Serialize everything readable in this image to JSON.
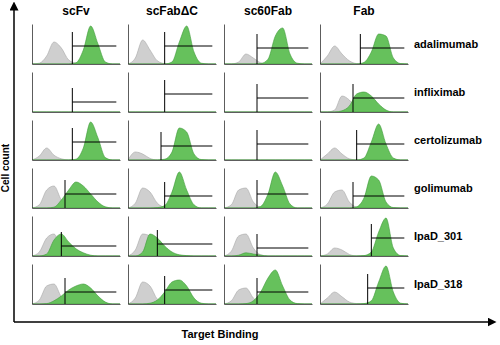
{
  "chart_data": {
    "type": "histogram",
    "x_label": "Target Binding",
    "y_label": "Cell count",
    "columns": [
      "scFv",
      "scFabΔC",
      "sc60Fab",
      "Fab"
    ],
    "rows": [
      "adalimumab",
      "infliximab",
      "certolizumab",
      "golimumab",
      "IpaD_301",
      "IpaD_318"
    ],
    "colors": [
      "#cfcfcf",
      "#66c15c"
    ],
    "x": [
      0,
      1,
      2,
      3,
      4,
      5,
      6,
      7,
      8,
      9,
      10,
      11,
      12
    ],
    "xlim": [
      0,
      12
    ],
    "ylim": [
      0,
      100
    ],
    "tick_labels": false,
    "panels": [
      [
        {
          "control": [
            0,
            2,
            20,
            55,
            40,
            10,
            2,
            0,
            0,
            0,
            0,
            0,
            0
          ],
          "sample": [
            0,
            0,
            0,
            0,
            0,
            0,
            3,
            35,
            95,
            50,
            5,
            0,
            0
          ],
          "gate": {
            "x": [
              5.5,
              11.5
            ],
            "y": 45
          }
        },
        {
          "control": [
            0,
            15,
            60,
            35,
            8,
            1,
            0,
            0,
            0,
            0,
            0,
            0,
            0
          ],
          "sample": [
            0,
            0,
            0,
            0,
            0,
            0,
            5,
            55,
            95,
            30,
            2,
            0,
            0
          ],
          "gate": {
            "x": [
              5,
              11.5
            ],
            "y": 45
          }
        },
        {
          "control": [
            0,
            0,
            5,
            25,
            15,
            3,
            0,
            0,
            0,
            0,
            0,
            0,
            0
          ],
          "sample": [
            0,
            0,
            0,
            0,
            0,
            1,
            12,
            70,
            90,
            25,
            2,
            0,
            0
          ],
          "gate": {
            "x": [
              4.5,
              11.5
            ],
            "y": 40
          }
        },
        {
          "control": [
            0,
            20,
            45,
            25,
            8,
            1,
            0,
            0,
            0,
            0,
            0,
            0,
            0
          ],
          "sample": [
            0,
            0,
            0,
            0,
            0,
            0,
            4,
            30,
            75,
            70,
            15,
            1,
            0
          ],
          "gate": {
            "x": [
              5.5,
              11.5
            ],
            "y": 40
          }
        }
      ],
      [
        {
          "control": [
            0,
            0,
            0,
            0,
            0,
            0,
            0,
            0,
            0,
            0,
            0,
            0,
            0
          ],
          "sample": [
            0,
            0,
            0,
            0,
            0,
            0,
            0,
            0,
            0,
            0,
            0,
            0,
            0
          ],
          "gate": {
            "x": [
              5.5,
              11.5
            ],
            "y": 25
          }
        },
        {
          "control": [
            0,
            0,
            0,
            0,
            0,
            0,
            0,
            0,
            0,
            0,
            0,
            0,
            0
          ],
          "sample": [
            0,
            0,
            0,
            0,
            0,
            0,
            0,
            0,
            0,
            0,
            0,
            0,
            0
          ],
          "gate": {
            "x": [
              5,
              11.5
            ],
            "y": 45
          }
        },
        {
          "control": [
            0,
            0,
            0,
            0,
            0,
            0,
            0,
            0,
            0,
            0,
            0,
            0,
            0
          ],
          "sample": [
            0,
            0,
            0,
            0,
            0,
            0,
            0,
            0,
            0,
            0,
            0,
            0,
            0
          ],
          "gate": {
            "x": [
              4.5,
              11.5
            ],
            "y": 35
          }
        },
        {
          "control": [
            0,
            0,
            5,
            40,
            30,
            8,
            1,
            0,
            0,
            0,
            0,
            0,
            0
          ],
          "sample": [
            0,
            0,
            0,
            3,
            15,
            45,
            50,
            40,
            20,
            5,
            0,
            0,
            0
          ],
          "gate": {
            "x": [
              4.5,
              11.5
            ],
            "y": 35
          }
        }
      ],
      [
        {
          "control": [
            0,
            10,
            30,
            12,
            3,
            0,
            0,
            0,
            0,
            0,
            0,
            0,
            0
          ],
          "sample": [
            0,
            0,
            0,
            0,
            0,
            0,
            2,
            30,
            95,
            55,
            6,
            0,
            0
          ],
          "gate": {
            "x": [
              5.5,
              11.5
            ],
            "y": 45
          }
        },
        {
          "control": [
            0,
            20,
            15,
            4,
            0,
            0,
            0,
            0,
            0,
            0,
            0,
            0,
            0
          ],
          "sample": [
            0,
            0,
            0,
            0,
            0,
            2,
            20,
            80,
            70,
            15,
            1,
            0,
            0
          ],
          "gate": {
            "x": [
              4.5,
              11.5
            ],
            "y": 35
          }
        },
        {
          "control": [
            0,
            0,
            0,
            0,
            0,
            0,
            0,
            0,
            0,
            0,
            0,
            0,
            0
          ],
          "sample": [
            0,
            0,
            0,
            0,
            0,
            0,
            0,
            0,
            0,
            0,
            0,
            0,
            0
          ],
          "gate": {
            "x": [
              4.5,
              11.5
            ],
            "y": 40
          }
        },
        {
          "control": [
            0,
            15,
            30,
            15,
            3,
            0,
            0,
            0,
            0,
            0,
            0,
            0,
            0
          ],
          "sample": [
            0,
            0,
            0,
            0,
            0,
            0,
            5,
            45,
            90,
            40,
            5,
            0,
            0
          ],
          "gate": {
            "x": [
              5,
              11.5
            ],
            "y": 40
          }
        }
      ],
      [
        {
          "control": [
            0,
            8,
            45,
            55,
            20,
            3,
            0,
            0,
            0,
            0,
            0,
            0,
            0
          ],
          "sample": [
            0,
            0,
            0,
            2,
            20,
            45,
            65,
            55,
            35,
            15,
            3,
            0,
            0
          ],
          "gate": {
            "x": [
              4.5,
              11.5
            ],
            "y": 35
          }
        },
        {
          "control": [
            0,
            12,
            50,
            40,
            12,
            2,
            0,
            0,
            0,
            0,
            0,
            0,
            0
          ],
          "sample": [
            0,
            0,
            0,
            0,
            1,
            6,
            40,
            90,
            45,
            8,
            0,
            0,
            0
          ],
          "gate": {
            "x": [
              5,
              11.5
            ],
            "y": 30
          }
        },
        {
          "control": [
            0,
            8,
            45,
            50,
            15,
            2,
            0,
            0,
            0,
            0,
            0,
            0,
            0
          ],
          "sample": [
            0,
            0,
            0,
            0,
            0,
            4,
            35,
            90,
            55,
            10,
            0,
            0,
            0
          ],
          "gate": {
            "x": [
              4.5,
              11.5
            ],
            "y": 35
          }
        },
        {
          "control": [
            0,
            10,
            40,
            45,
            15,
            2,
            0,
            0,
            0,
            0,
            0,
            0,
            0
          ],
          "sample": [
            0,
            0,
            0,
            0,
            0,
            3,
            25,
            80,
            70,
            15,
            1,
            0,
            0
          ],
          "gate": {
            "x": [
              4.5,
              11.5
            ],
            "y": 30
          }
        }
      ],
      [
        {
          "control": [
            0,
            10,
            45,
            55,
            20,
            3,
            0,
            0,
            0,
            0,
            0,
            0,
            0
          ],
          "sample": [
            0,
            0,
            5,
            40,
            55,
            35,
            18,
            8,
            2,
            0,
            0,
            0,
            0
          ],
          "gate": {
            "x": [
              4,
              11.5
            ],
            "y": 25
          }
        },
        {
          "control": [
            0,
            15,
            55,
            50,
            15,
            2,
            0,
            0,
            0,
            0,
            0,
            0,
            0
          ],
          "sample": [
            0,
            0,
            10,
            55,
            45,
            25,
            10,
            3,
            1,
            0,
            0,
            0,
            0
          ],
          "gate": {
            "x": [
              4,
              11.5
            ],
            "y": 30
          }
        },
        {
          "control": [
            0,
            12,
            50,
            55,
            20,
            3,
            0,
            0,
            0,
            0,
            0,
            0,
            0
          ],
          "sample": [
            0,
            0,
            2,
            8,
            5,
            2,
            0,
            0,
            0,
            0,
            0,
            0,
            0
          ],
          "gate": {
            "x": [
              4.5,
              11.5
            ],
            "y": 20
          }
        },
        {
          "control": [
            0,
            5,
            20,
            15,
            4,
            0,
            0,
            0,
            0,
            0,
            0,
            0,
            0
          ],
          "sample": [
            0,
            0,
            0,
            0,
            0,
            0,
            1,
            10,
            60,
            95,
            20,
            1,
            0
          ],
          "gate": {
            "x": [
              7,
              11.5
            ],
            "y": 45
          }
        }
      ],
      [
        {
          "control": [
            0,
            10,
            45,
            50,
            18,
            3,
            0,
            0,
            0,
            0,
            0,
            0,
            0
          ],
          "sample": [
            0,
            0,
            1,
            8,
            20,
            35,
            45,
            50,
            40,
            20,
            5,
            0,
            0
          ],
          "gate": {
            "x": [
              4.5,
              11.5
            ],
            "y": 30
          }
        },
        {
          "control": [
            0,
            15,
            55,
            45,
            12,
            2,
            0,
            0,
            0,
            0,
            0,
            0,
            0
          ],
          "sample": [
            0,
            0,
            0,
            2,
            10,
            30,
            55,
            60,
            45,
            15,
            2,
            0,
            0
          ],
          "gate": {
            "x": [
              5,
              11.5
            ],
            "y": 35
          }
        },
        {
          "control": [
            0,
            8,
            35,
            40,
            15,
            2,
            0,
            0,
            0,
            0,
            0,
            0,
            0
          ],
          "sample": [
            0,
            0,
            0,
            1,
            8,
            30,
            65,
            85,
            45,
            10,
            1,
            0,
            0
          ],
          "gate": {
            "x": [
              4.5,
              11.5
            ],
            "y": 30
          }
        },
        {
          "control": [
            0,
            15,
            30,
            18,
            5,
            1,
            0,
            0,
            0,
            0,
            0,
            0,
            0
          ],
          "sample": [
            0,
            0,
            0,
            0,
            0,
            0,
            1,
            8,
            55,
            95,
            30,
            2,
            0
          ],
          "gate": {
            "x": [
              6.5,
              11.5
            ],
            "y": 40
          }
        }
      ]
    ]
  }
}
